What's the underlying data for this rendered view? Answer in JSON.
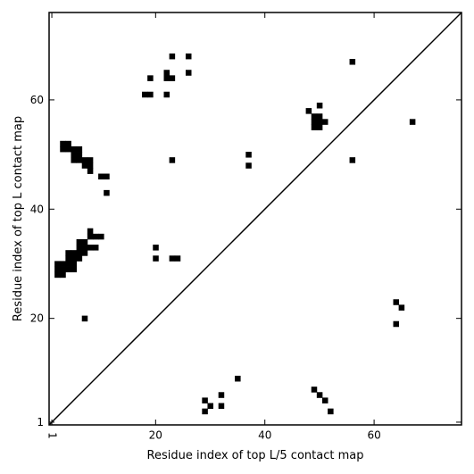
{
  "chart_data": {
    "type": "heatmap",
    "title": "",
    "xlabel": "Residue index of top L/5 contact map",
    "ylabel": "Residue index of top L contact map",
    "xlim": [
      0.5,
      76
    ],
    "ylim": [
      0.5,
      76
    ],
    "x_ticks": [
      1,
      20,
      40,
      60
    ],
    "y_ticks": [
      1,
      20,
      40,
      60
    ],
    "diagonal": true,
    "upper_left_contacts": [
      [
        19,
        64
      ],
      [
        23,
        68
      ],
      [
        26,
        68
      ],
      [
        22,
        65
      ],
      [
        22,
        64
      ],
      [
        23,
        64
      ],
      [
        26,
        65
      ],
      [
        18,
        61
      ],
      [
        19,
        61
      ],
      [
        22,
        61
      ],
      [
        3,
        52
      ],
      [
        4,
        52
      ],
      [
        3,
        51
      ],
      [
        4,
        51
      ],
      [
        5,
        51
      ],
      [
        6,
        51
      ],
      [
        5,
        50
      ],
      [
        6,
        50
      ],
      [
        5,
        49
      ],
      [
        6,
        49
      ],
      [
        7,
        49
      ],
      [
        8,
        49
      ],
      [
        7,
        48
      ],
      [
        8,
        48
      ],
      [
        8,
        47
      ],
      [
        10,
        46
      ],
      [
        11,
        46
      ],
      [
        11,
        43
      ],
      [
        23,
        49
      ],
      [
        48,
        58
      ],
      [
        50,
        59
      ],
      [
        49,
        57
      ],
      [
        50,
        57
      ],
      [
        49,
        56
      ],
      [
        50,
        56
      ],
      [
        51,
        56
      ],
      [
        49,
        55
      ],
      [
        50,
        55
      ],
      [
        56,
        67
      ],
      [
        67,
        56
      ],
      [
        56,
        49
      ],
      [
        37,
        50
      ],
      [
        37,
        48
      ],
      [
        8,
        36
      ],
      [
        8,
        35
      ],
      [
        9,
        35
      ],
      [
        10,
        35
      ],
      [
        6,
        34
      ],
      [
        7,
        34
      ],
      [
        6,
        33
      ],
      [
        7,
        33
      ],
      [
        8,
        33
      ],
      [
        9,
        33
      ],
      [
        4,
        32
      ],
      [
        5,
        32
      ],
      [
        6,
        32
      ],
      [
        7,
        32
      ],
      [
        4,
        31
      ],
      [
        5,
        31
      ],
      [
        6,
        31
      ],
      [
        2,
        30
      ],
      [
        3,
        30
      ],
      [
        4,
        30
      ],
      [
        5,
        30
      ],
      [
        2,
        29
      ],
      [
        3,
        29
      ],
      [
        4,
        29
      ],
      [
        5,
        29
      ],
      [
        2,
        28
      ],
      [
        3,
        28
      ],
      [
        20,
        33
      ],
      [
        20,
        31
      ],
      [
        23,
        31
      ],
      [
        24,
        31
      ],
      [
        7,
        20
      ]
    ],
    "lower_right_contacts": [
      [
        64,
        23
      ],
      [
        65,
        22
      ],
      [
        64,
        19
      ],
      [
        35,
        9
      ],
      [
        32,
        6
      ],
      [
        29,
        5
      ],
      [
        30,
        4
      ],
      [
        32,
        4
      ],
      [
        29,
        3
      ],
      [
        49,
        7
      ],
      [
        50,
        6
      ],
      [
        51,
        5
      ],
      [
        52,
        3
      ]
    ]
  }
}
